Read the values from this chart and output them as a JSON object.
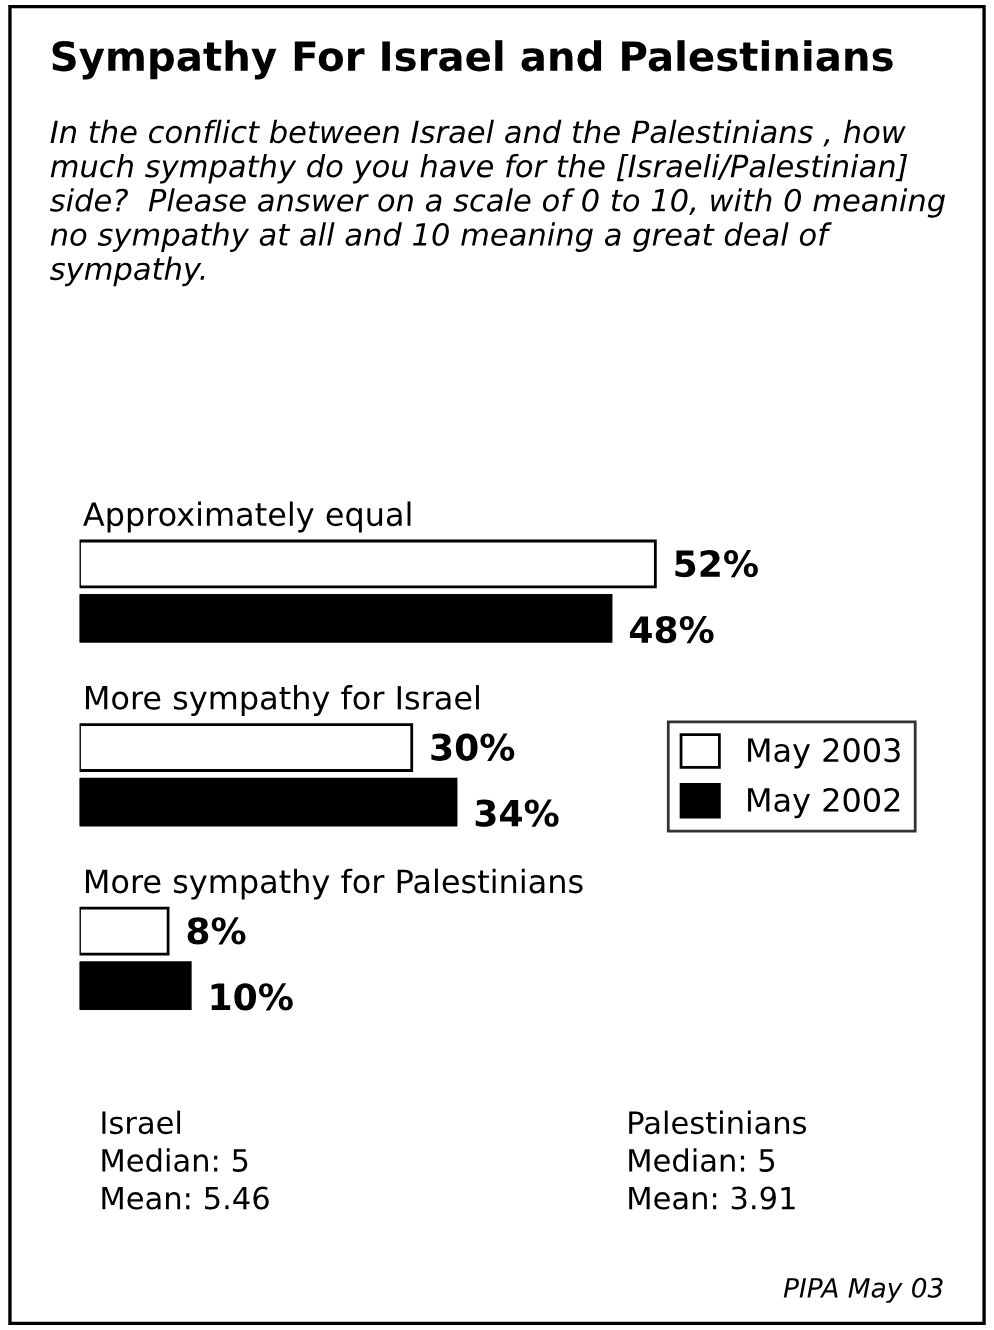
{
  "chart_data": {
    "type": "bar",
    "orientation": "horizontal",
    "title": "Sympathy For Israel and Palestinians",
    "subtitle": "In the conflict between Israel and the Palestinians , how much sympathy do you have for the [Israeli/Palestinian] side?  Please answer on a scale of 0 to 10, with 0 meaning no sympathy at all and 10 meaning a great deal of sympathy.",
    "categories": [
      "Approximately equal",
      "More sympathy for Israel",
      "More sympathy for Palestinians"
    ],
    "series": [
      {
        "name": "May 2003",
        "color": "#ffffff",
        "values": [
          52,
          30,
          8
        ],
        "value_labels": [
          "52%",
          "30%",
          "8%"
        ]
      },
      {
        "name": "May 2002",
        "color": "#000000",
        "values": [
          48,
          34,
          10
        ],
        "value_labels": [
          "48%",
          "34%",
          "10%"
        ]
      }
    ],
    "legend": "right",
    "annotations": [
      "Israel\nMedian: 5\nMean: 5.46",
      "Palestinians\nMedian: 5\nMean: 3.91",
      "PIPA May 03"
    ]
  }
}
